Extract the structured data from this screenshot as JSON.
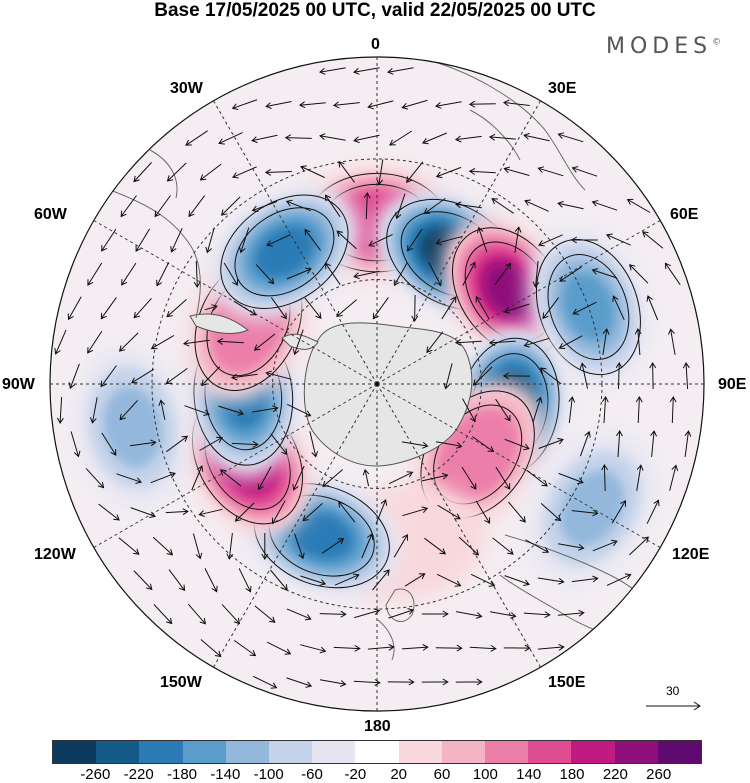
{
  "title": "Base 17/05/2025 00 UTC, valid 22/05/2025 00 UTC",
  "brand": "MODES",
  "brand_mark": "©",
  "longitude_labels": [
    "0",
    "30E",
    "60E",
    "90E",
    "120E",
    "150E",
    "180",
    "150W",
    "120W",
    "90W",
    "60W",
    "30W"
  ],
  "reference_vector": "30",
  "colorbar": {
    "ticks": [
      "-260",
      "-220",
      "-180",
      "-140",
      "-100",
      "-60",
      "-20",
      "20",
      "60",
      "100",
      "140",
      "180",
      "220",
      "260"
    ],
    "colors": [
      "#0d3a5c",
      "#155b8a",
      "#2c7bb6",
      "#5a9ccb",
      "#93b8dc",
      "#c5d3ea",
      "#e6e6f2",
      "#ffffff",
      "#f9d8dd",
      "#f5b4c4",
      "#ec7fa9",
      "#df4c92",
      "#c01b80",
      "#8e0f7a",
      "#5e0a6e"
    ]
  },
  "map_data": {
    "projection": "south polar stereographic",
    "anomalies": [
      {
        "lon": 0,
        "lat": -45,
        "value": 180
      },
      {
        "lon": 30,
        "lat": -48,
        "value": -260
      },
      {
        "lon": 55,
        "lat": -45,
        "value": 240
      },
      {
        "lon": 70,
        "lat": -30,
        "value": -140
      },
      {
        "lon": 100,
        "lat": -52,
        "value": -260
      },
      {
        "lon": 125,
        "lat": -55,
        "value": 140
      },
      {
        "lon": 120,
        "lat": -25,
        "value": -100
      },
      {
        "lon": 170,
        "lat": -45,
        "value": 60
      },
      {
        "lon": -160,
        "lat": -45,
        "value": -180
      },
      {
        "lon": -120,
        "lat": -48,
        "value": 220
      },
      {
        "lon": -95,
        "lat": -52,
        "value": -180
      },
      {
        "lon": -65,
        "lat": -50,
        "value": 140
      },
      {
        "lon": -35,
        "lat": -45,
        "value": -180
      },
      {
        "lon": -100,
        "lat": -25,
        "value": -100
      }
    ]
  }
}
